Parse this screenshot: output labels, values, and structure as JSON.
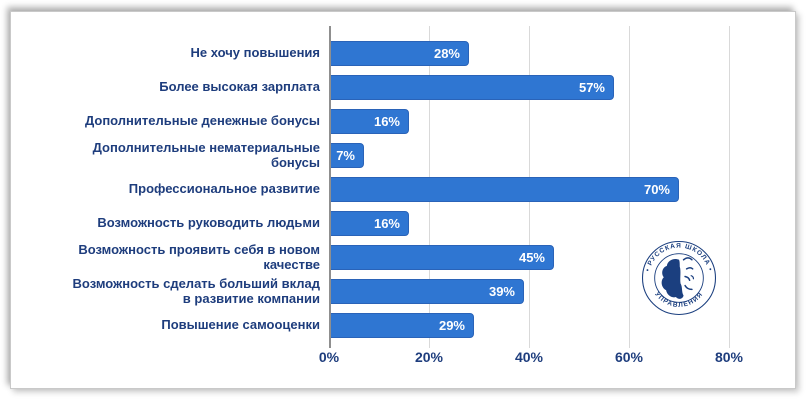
{
  "chart_data": {
    "type": "bar",
    "orientation": "horizontal",
    "title": "",
    "xlabel": "",
    "ylabel": "",
    "categories": [
      "Не хочу повышения",
      "Более высокая зарплата",
      "Дополнительные денежные бонусы",
      "Дополнительные нематериальные\nбонусы",
      "Профессиональное развитие",
      "Возможность руководить людьми",
      "Возможность проявить себя в новом\nкачестве",
      "Возможность сделать больший вклад\nв развитие компании",
      "Повышение самооценки"
    ],
    "values": [
      28,
      57,
      16,
      7,
      70,
      16,
      45,
      39,
      29
    ],
    "value_suffix": "%",
    "x_ticks": [
      {
        "value": 0,
        "label": "0%"
      },
      {
        "value": 20,
        "label": "20%"
      },
      {
        "value": 40,
        "label": "40%"
      },
      {
        "value": 60,
        "label": "60%"
      },
      {
        "value": 80,
        "label": "80%"
      }
    ],
    "xlim": [
      0,
      90
    ],
    "grid": true,
    "legend": false,
    "colors": {
      "bar": "#2f76d2",
      "bar_border": "#2a63b8",
      "value_label": "#ffffff",
      "category_label": "#1e3d7d",
      "grid_line": "#d9d9d9",
      "axis_line": "#8f8f8f"
    }
  },
  "logo": {
    "ring_text_top": "• РУССКАЯ ШКОЛА •",
    "ring_text_bottom": "УПРАВЛЕНИЯ",
    "color": "#1b3f7f"
  }
}
